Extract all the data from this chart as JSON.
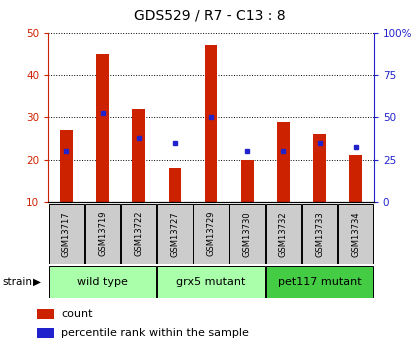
{
  "title": "GDS529 / R7 - C13 : 8",
  "samples": [
    "GSM13717",
    "GSM13719",
    "GSM13722",
    "GSM13727",
    "GSM13729",
    "GSM13730",
    "GSM13732",
    "GSM13733",
    "GSM13734"
  ],
  "bar_values": [
    27,
    45,
    32,
    18,
    47,
    20,
    29,
    26,
    21
  ],
  "dot_values": [
    22,
    31,
    25,
    24,
    30,
    22,
    22,
    24,
    23
  ],
  "bar_color": "#cc2200",
  "dot_color": "#2222cc",
  "bar_bottom": 10,
  "ylim_left": [
    10,
    50
  ],
  "ylim_right": [
    0,
    100
  ],
  "yticks_left": [
    10,
    20,
    30,
    40,
    50
  ],
  "yticks_right": [
    0,
    25,
    50,
    75,
    100
  ],
  "ytick_labels_right": [
    "0",
    "25",
    "50",
    "75",
    "100%"
  ],
  "group_labels": [
    "wild type",
    "grx5 mutant",
    "pet117 mutant"
  ],
  "group_starts": [
    0,
    3,
    6
  ],
  "group_ends": [
    2,
    5,
    8
  ],
  "group_colors": [
    "#aaffaa",
    "#aaffaa",
    "#44cc44"
  ],
  "strain_label": "strain",
  "legend_count": "count",
  "legend_pct": "percentile rank within the sample",
  "axis_left_color": "#cc2200",
  "axis_right_color": "#2222cc",
  "label_box_color": "#cccccc",
  "grid_color": "#000000",
  "bar_width": 0.35
}
